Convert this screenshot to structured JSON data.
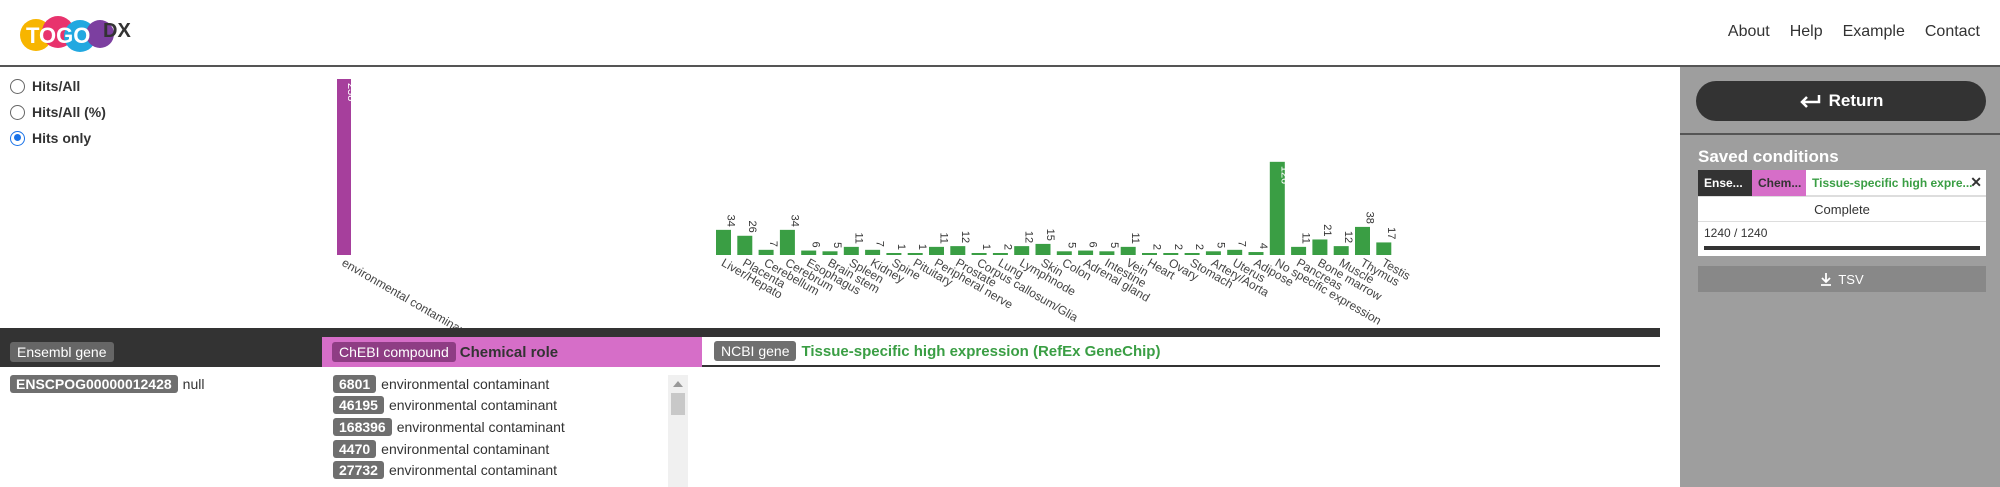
{
  "header": {
    "logo_text": "TOGO",
    "logo_suffix": "DX",
    "nav": [
      "About",
      "Help",
      "Example",
      "Contact"
    ]
  },
  "display_mode": {
    "options": [
      "Hits/All",
      "Hits/All (%)",
      "Hits only"
    ],
    "selected": "Hits only"
  },
  "colors": {
    "chemical_role": "#a63f9c",
    "tissue": "#3a9e44",
    "chem_header": "#d66ec8",
    "dark": "#333333"
  },
  "chart_data": [
    {
      "type": "bar",
      "categories": [
        "environmental contaminant"
      ],
      "values": [
        238
      ],
      "color": "#a63f9c"
    },
    {
      "type": "bar",
      "categories": [
        "Liver/Hepato",
        "Placenta",
        "Cerebellum",
        "Cerebrum",
        "Esophagus",
        "Brain stem",
        "Spleen",
        "Kidney",
        "Spine",
        "Pituitary",
        "Peripheral nerve",
        "Prostate",
        "Corpus callosum/Glia",
        "Lung",
        "Lymphnode",
        "Skin",
        "Colon",
        "Adrenal gland",
        "Intestine",
        "Vein",
        "Heart",
        "Ovary",
        "Stomach",
        "Artery/Aorta",
        "Uterus",
        "Adipose",
        "No specific expression",
        "Pancreas",
        "Bone marrow",
        "Muscle",
        "Thymus",
        "Testis"
      ],
      "values": [
        34,
        26,
        7,
        34,
        6,
        5,
        11,
        7,
        1,
        1,
        11,
        12,
        1,
        2,
        12,
        15,
        5,
        6,
        5,
        11,
        2,
        2,
        2,
        5,
        7,
        4,
        126,
        11,
        21,
        12,
        38,
        17
      ],
      "color": "#3a9e44"
    }
  ],
  "table": {
    "col1": {
      "badge": "Ensembl gene"
    },
    "col2": {
      "badge": "ChEBI compound",
      "label": "Chemical role"
    },
    "col3": {
      "badge": "NCBI gene",
      "label": "Tissue-specific high expression (RefEx GeneChip)"
    },
    "gene_id": "ENSCPOG00000012428",
    "gene_name": "null",
    "compounds": [
      {
        "id": "6801",
        "role": "environmental contaminant"
      },
      {
        "id": "46195",
        "role": "environmental contaminant"
      },
      {
        "id": "168396",
        "role": "environmental contaminant"
      },
      {
        "id": "4470",
        "role": "environmental contaminant"
      },
      {
        "id": "27732",
        "role": "environmental contaminant"
      }
    ]
  },
  "side": {
    "return_label": "Return",
    "saved_title": "Saved conditions",
    "chips": [
      "Ense...",
      "Chem...",
      "Tissue-specific high expre..."
    ],
    "status": "Complete",
    "progress_text": "1240 / 1240",
    "progress_fraction": 1.0,
    "tsv_label": "TSV"
  }
}
